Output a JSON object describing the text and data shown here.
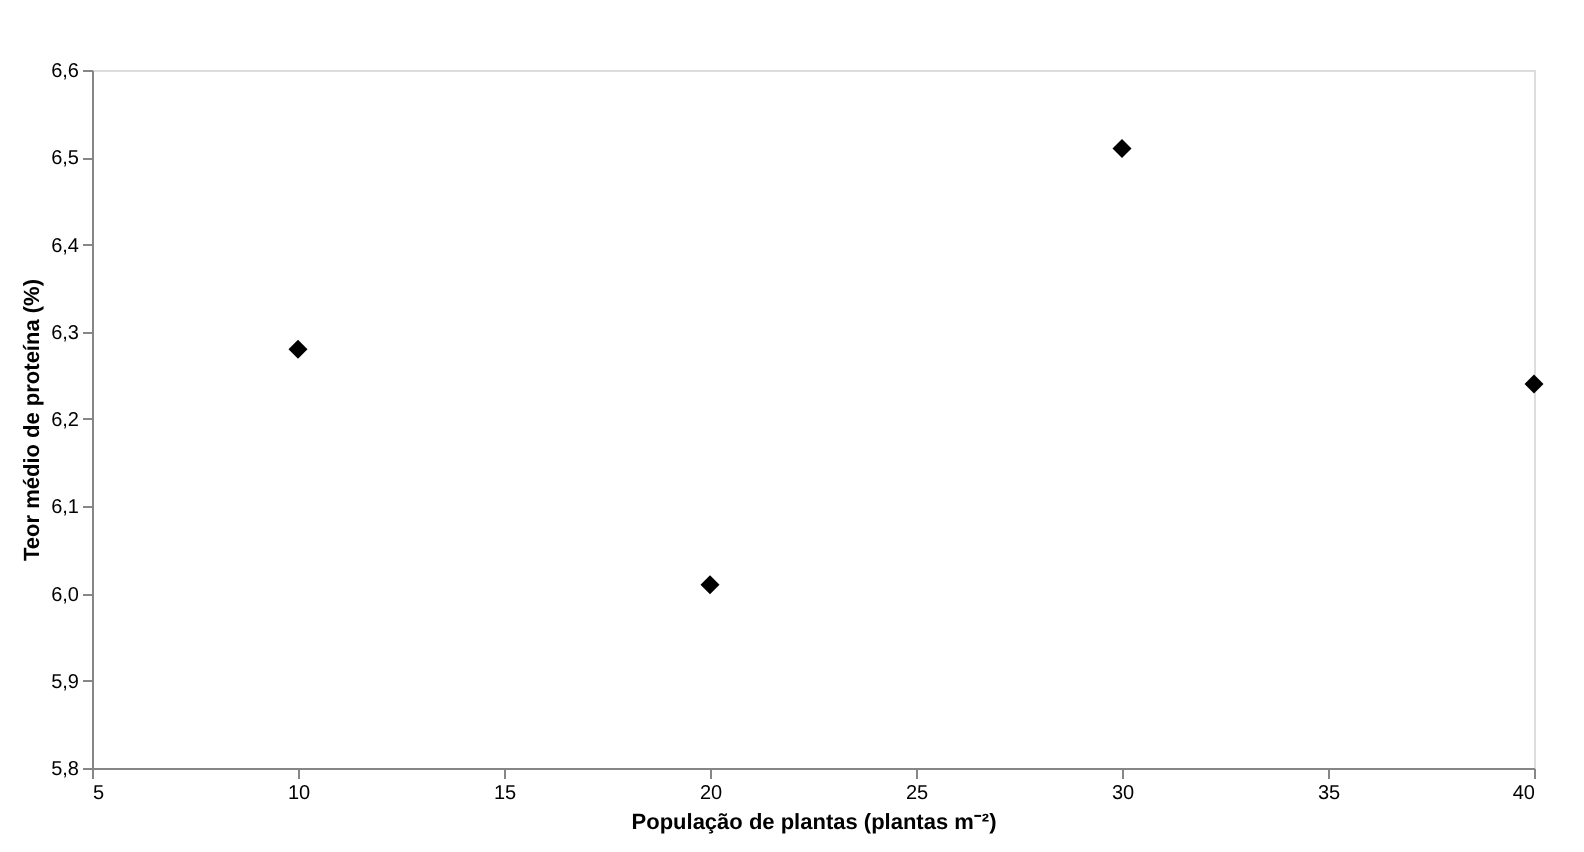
{
  "chart_data": {
    "type": "scatter",
    "xlabel": "População de plantas (plantas m⁻²)",
    "ylabel": "Teor médio de proteína (%)",
    "x": [
      10,
      20,
      30,
      40
    ],
    "series": [
      {
        "color": "#000000",
        "values": [
          6.28,
          6.01,
          6.51,
          6.24
        ]
      }
    ],
    "xlim": [
      5,
      40
    ],
    "xticks": [
      5,
      10,
      15,
      20,
      25,
      30,
      35,
      40
    ],
    "ylim": [
      5.8,
      6.6
    ],
    "yticks": [
      {
        "value": 5.8,
        "label": "5,8"
      },
      {
        "value": 5.9,
        "label": "5,9"
      },
      {
        "value": 6.0,
        "label": "6,0"
      },
      {
        "value": 6.1,
        "label": "6,1"
      },
      {
        "value": 6.2,
        "label": "6,2"
      },
      {
        "value": 6.3,
        "label": "6,3"
      },
      {
        "value": 6.4,
        "label": "6,4"
      },
      {
        "value": 6.5,
        "label": "6,5"
      },
      {
        "value": 6.6,
        "label": "6,6"
      }
    ],
    "marker": "diamond",
    "grid": false,
    "legend": false
  }
}
